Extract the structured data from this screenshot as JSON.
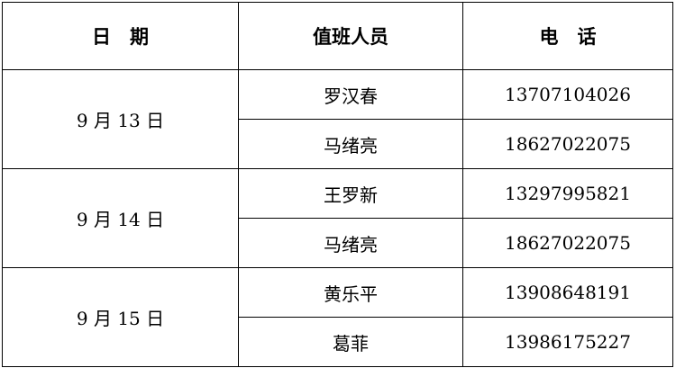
{
  "headers": [
    "日　期",
    "值班人员",
    "电　话"
  ],
  "groups": [
    {
      "date": "9 月 13 日",
      "rows": [
        {
          "name": "罗汉春",
          "phone": "13707104026"
        },
        {
          "name": "马绪亮",
          "phone": "18627022075"
        }
      ]
    },
    {
      "date": "9 月 14 日",
      "rows": [
        {
          "name": "王罗新",
          "phone": "13297995821"
        },
        {
          "name": "马绪亮",
          "phone": "18627022075"
        }
      ]
    },
    {
      "date": "9 月 15 日",
      "rows": [
        {
          "name": "黄乐平",
          "phone": "13908648191"
        },
        {
          "name": "葛菲",
          "phone": "13986175227"
        }
      ]
    }
  ]
}
